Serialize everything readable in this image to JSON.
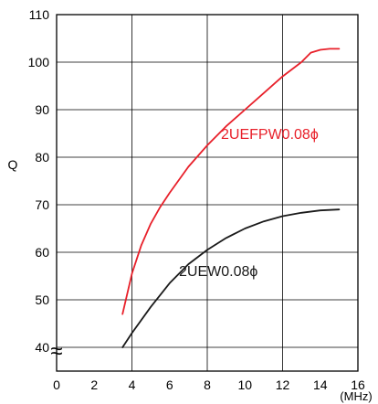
{
  "chart_data": {
    "type": "line",
    "title": "",
    "xlabel": "",
    "x_unit": "(MHz)",
    "ylabel": "Q",
    "xlim": [
      0,
      16
    ],
    "ylim": [
      35,
      110
    ],
    "x_ticks": [
      "0",
      "2",
      "4",
      "6",
      "8",
      "10",
      "12",
      "14",
      "16"
    ],
    "y_ticks": [
      "40",
      "50",
      "60",
      "70",
      "80",
      "90",
      "100",
      "110"
    ],
    "axis_break_symbol": "≈",
    "grid": true,
    "series": [
      {
        "name": "2UEFPW0.08ϕ",
        "color": "#e8202a",
        "points": [
          [
            3.5,
            47
          ],
          [
            4.0,
            55.5
          ],
          [
            4.5,
            61.5
          ],
          [
            5.0,
            66
          ],
          [
            5.5,
            69.5
          ],
          [
            6.0,
            72.5
          ],
          [
            7.0,
            78
          ],
          [
            8.0,
            82.5
          ],
          [
            9.0,
            86.5
          ],
          [
            10.0,
            90
          ],
          [
            11.0,
            93.5
          ],
          [
            12.0,
            97
          ],
          [
            13.0,
            100
          ],
          [
            13.5,
            102
          ],
          [
            14.0,
            102.6
          ],
          [
            14.5,
            102.8
          ],
          [
            15.0,
            102.8
          ]
        ]
      },
      {
        "name": "2UEW0.08ϕ",
        "color": "#1a1a1a",
        "points": [
          [
            3.5,
            40
          ],
          [
            4.0,
            43
          ],
          [
            5.0,
            48.5
          ],
          [
            6.0,
            53.5
          ],
          [
            7.0,
            57.5
          ],
          [
            8.0,
            60.5
          ],
          [
            9.0,
            63
          ],
          [
            10.0,
            65
          ],
          [
            11.0,
            66.5
          ],
          [
            12.0,
            67.6
          ],
          [
            13.0,
            68.3
          ],
          [
            14.0,
            68.8
          ],
          [
            15.0,
            69
          ]
        ]
      }
    ]
  }
}
